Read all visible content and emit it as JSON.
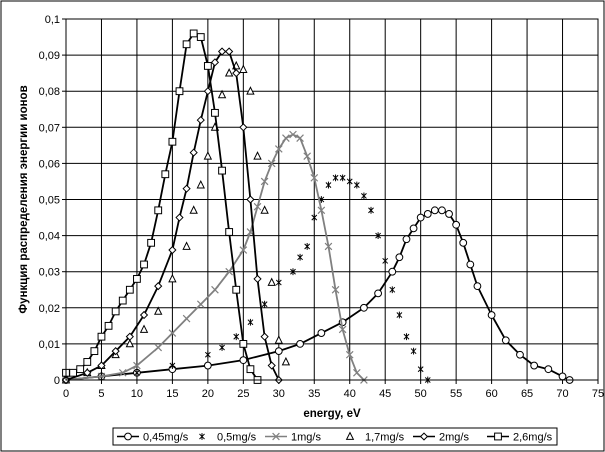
{
  "chart_data": {
    "type": "line",
    "title": "",
    "xlabel": "energy, eV",
    "ylabel": "Функция распределения энергии ионов",
    "xlim": [
      0,
      75
    ],
    "ylim": [
      0,
      0.1
    ],
    "x_ticks": [
      "0",
      "5",
      "10",
      "15",
      "20",
      "25",
      "30",
      "35",
      "40",
      "45",
      "50",
      "55",
      "60",
      "65",
      "70",
      "75"
    ],
    "y_ticks": [
      "0",
      "0,01",
      "0,02",
      "0,03",
      "0,04",
      "0,05",
      "0,06",
      "0,07",
      "0,08",
      "0,09",
      "0,1"
    ],
    "grid": true,
    "legend_position": "bottom",
    "series": [
      {
        "name": "0,45mg/s",
        "marker": "circle",
        "line": true,
        "color": "#000000",
        "x": [
          0,
          5,
          10,
          15,
          20,
          25,
          30,
          33,
          36,
          39,
          42,
          44,
          46,
          47,
          48,
          49,
          50,
          51,
          52,
          53,
          54,
          55,
          56,
          57,
          58,
          60,
          62,
          64,
          66,
          68,
          70,
          71
        ],
        "y": [
          0,
          0.001,
          0.002,
          0.003,
          0.004,
          0.0055,
          0.008,
          0.01,
          0.013,
          0.016,
          0.02,
          0.024,
          0.03,
          0.034,
          0.039,
          0.042,
          0.045,
          0.046,
          0.047,
          0.047,
          0.046,
          0.043,
          0.038,
          0.032,
          0.026,
          0.018,
          0.011,
          0.007,
          0.004,
          0.003,
          0.001,
          0
        ]
      },
      {
        "name": "0,5mg/s",
        "marker": "star",
        "line": false,
        "color": "#000000",
        "x": [
          0,
          5,
          10,
          15,
          20,
          22,
          24,
          26,
          28,
          30,
          32,
          33,
          34,
          35,
          36,
          37,
          38,
          39,
          40,
          41,
          42,
          43,
          44,
          45,
          46,
          47,
          48,
          49,
          50,
          51
        ],
        "y": [
          0,
          0.001,
          0.002,
          0.004,
          0.007,
          0.009,
          0.012,
          0.016,
          0.021,
          0.027,
          0.03,
          0.034,
          0.037,
          0.045,
          0.05,
          0.054,
          0.056,
          0.056,
          0.055,
          0.054,
          0.051,
          0.047,
          0.04,
          0.033,
          0.025,
          0.018,
          0.012,
          0.008,
          0.003,
          0
        ]
      },
      {
        "name": "1mg/s",
        "marker": "x",
        "line": true,
        "color": "#808080",
        "x": [
          0,
          5,
          8,
          10,
          13,
          15,
          17,
          19,
          21,
          23,
          25,
          26,
          27,
          28,
          29,
          30,
          31,
          32,
          33,
          34,
          35,
          36,
          37,
          38,
          39,
          40,
          41,
          42
        ],
        "y": [
          0,
          0.001,
          0.002,
          0.004,
          0.009,
          0.013,
          0.017,
          0.021,
          0.025,
          0.03,
          0.036,
          0.041,
          0.048,
          0.055,
          0.06,
          0.064,
          0.067,
          0.068,
          0.067,
          0.062,
          0.056,
          0.047,
          0.037,
          0.025,
          0.014,
          0.007,
          0.002,
          0
        ]
      },
      {
        "name": "1,7mg/s",
        "marker": "triangle",
        "line": false,
        "color": "#000000",
        "x": [
          0,
          3,
          5,
          7,
          9,
          11,
          13,
          15,
          17,
          18,
          19,
          20,
          21,
          22,
          23,
          24,
          25,
          26,
          27,
          28,
          29,
          30,
          31
        ],
        "y": [
          0,
          0.002,
          0.004,
          0.007,
          0.01,
          0.014,
          0.019,
          0.028,
          0.037,
          0.047,
          0.054,
          0.062,
          0.07,
          0.079,
          0.085,
          0.087,
          0.086,
          0.08,
          0.062,
          0.047,
          0.027,
          0.011,
          0.005
        ]
      },
      {
        "name": "2mg/s",
        "marker": "diamond",
        "line": true,
        "color": "#000000",
        "x": [
          0,
          3,
          5,
          7,
          9,
          11,
          13,
          15,
          16,
          17,
          18,
          19,
          20,
          21,
          22,
          23,
          24,
          25,
          26,
          27,
          28,
          29,
          30
        ],
        "y": [
          0,
          0.002,
          0.004,
          0.008,
          0.012,
          0.018,
          0.026,
          0.036,
          0.045,
          0.053,
          0.063,
          0.072,
          0.08,
          0.088,
          0.091,
          0.091,
          0.085,
          0.07,
          0.05,
          0.028,
          0.012,
          0.004,
          0
        ]
      },
      {
        "name": "2,6mg/s",
        "marker": "square",
        "line": true,
        "color": "#000000",
        "x": [
          0,
          1,
          2,
          3,
          4,
          5,
          6,
          7,
          8,
          9,
          10,
          11,
          12,
          13,
          14,
          15,
          16,
          17,
          18,
          19,
          20,
          21,
          22,
          23,
          24,
          25,
          26,
          27
        ],
        "y": [
          0.002,
          0.002,
          0.003,
          0.005,
          0.008,
          0.012,
          0.015,
          0.019,
          0.022,
          0.025,
          0.028,
          0.032,
          0.038,
          0.047,
          0.057,
          0.066,
          0.08,
          0.093,
          0.096,
          0.095,
          0.087,
          0.074,
          0.058,
          0.041,
          0.025,
          0.01,
          0.003,
          0
        ]
      }
    ]
  }
}
